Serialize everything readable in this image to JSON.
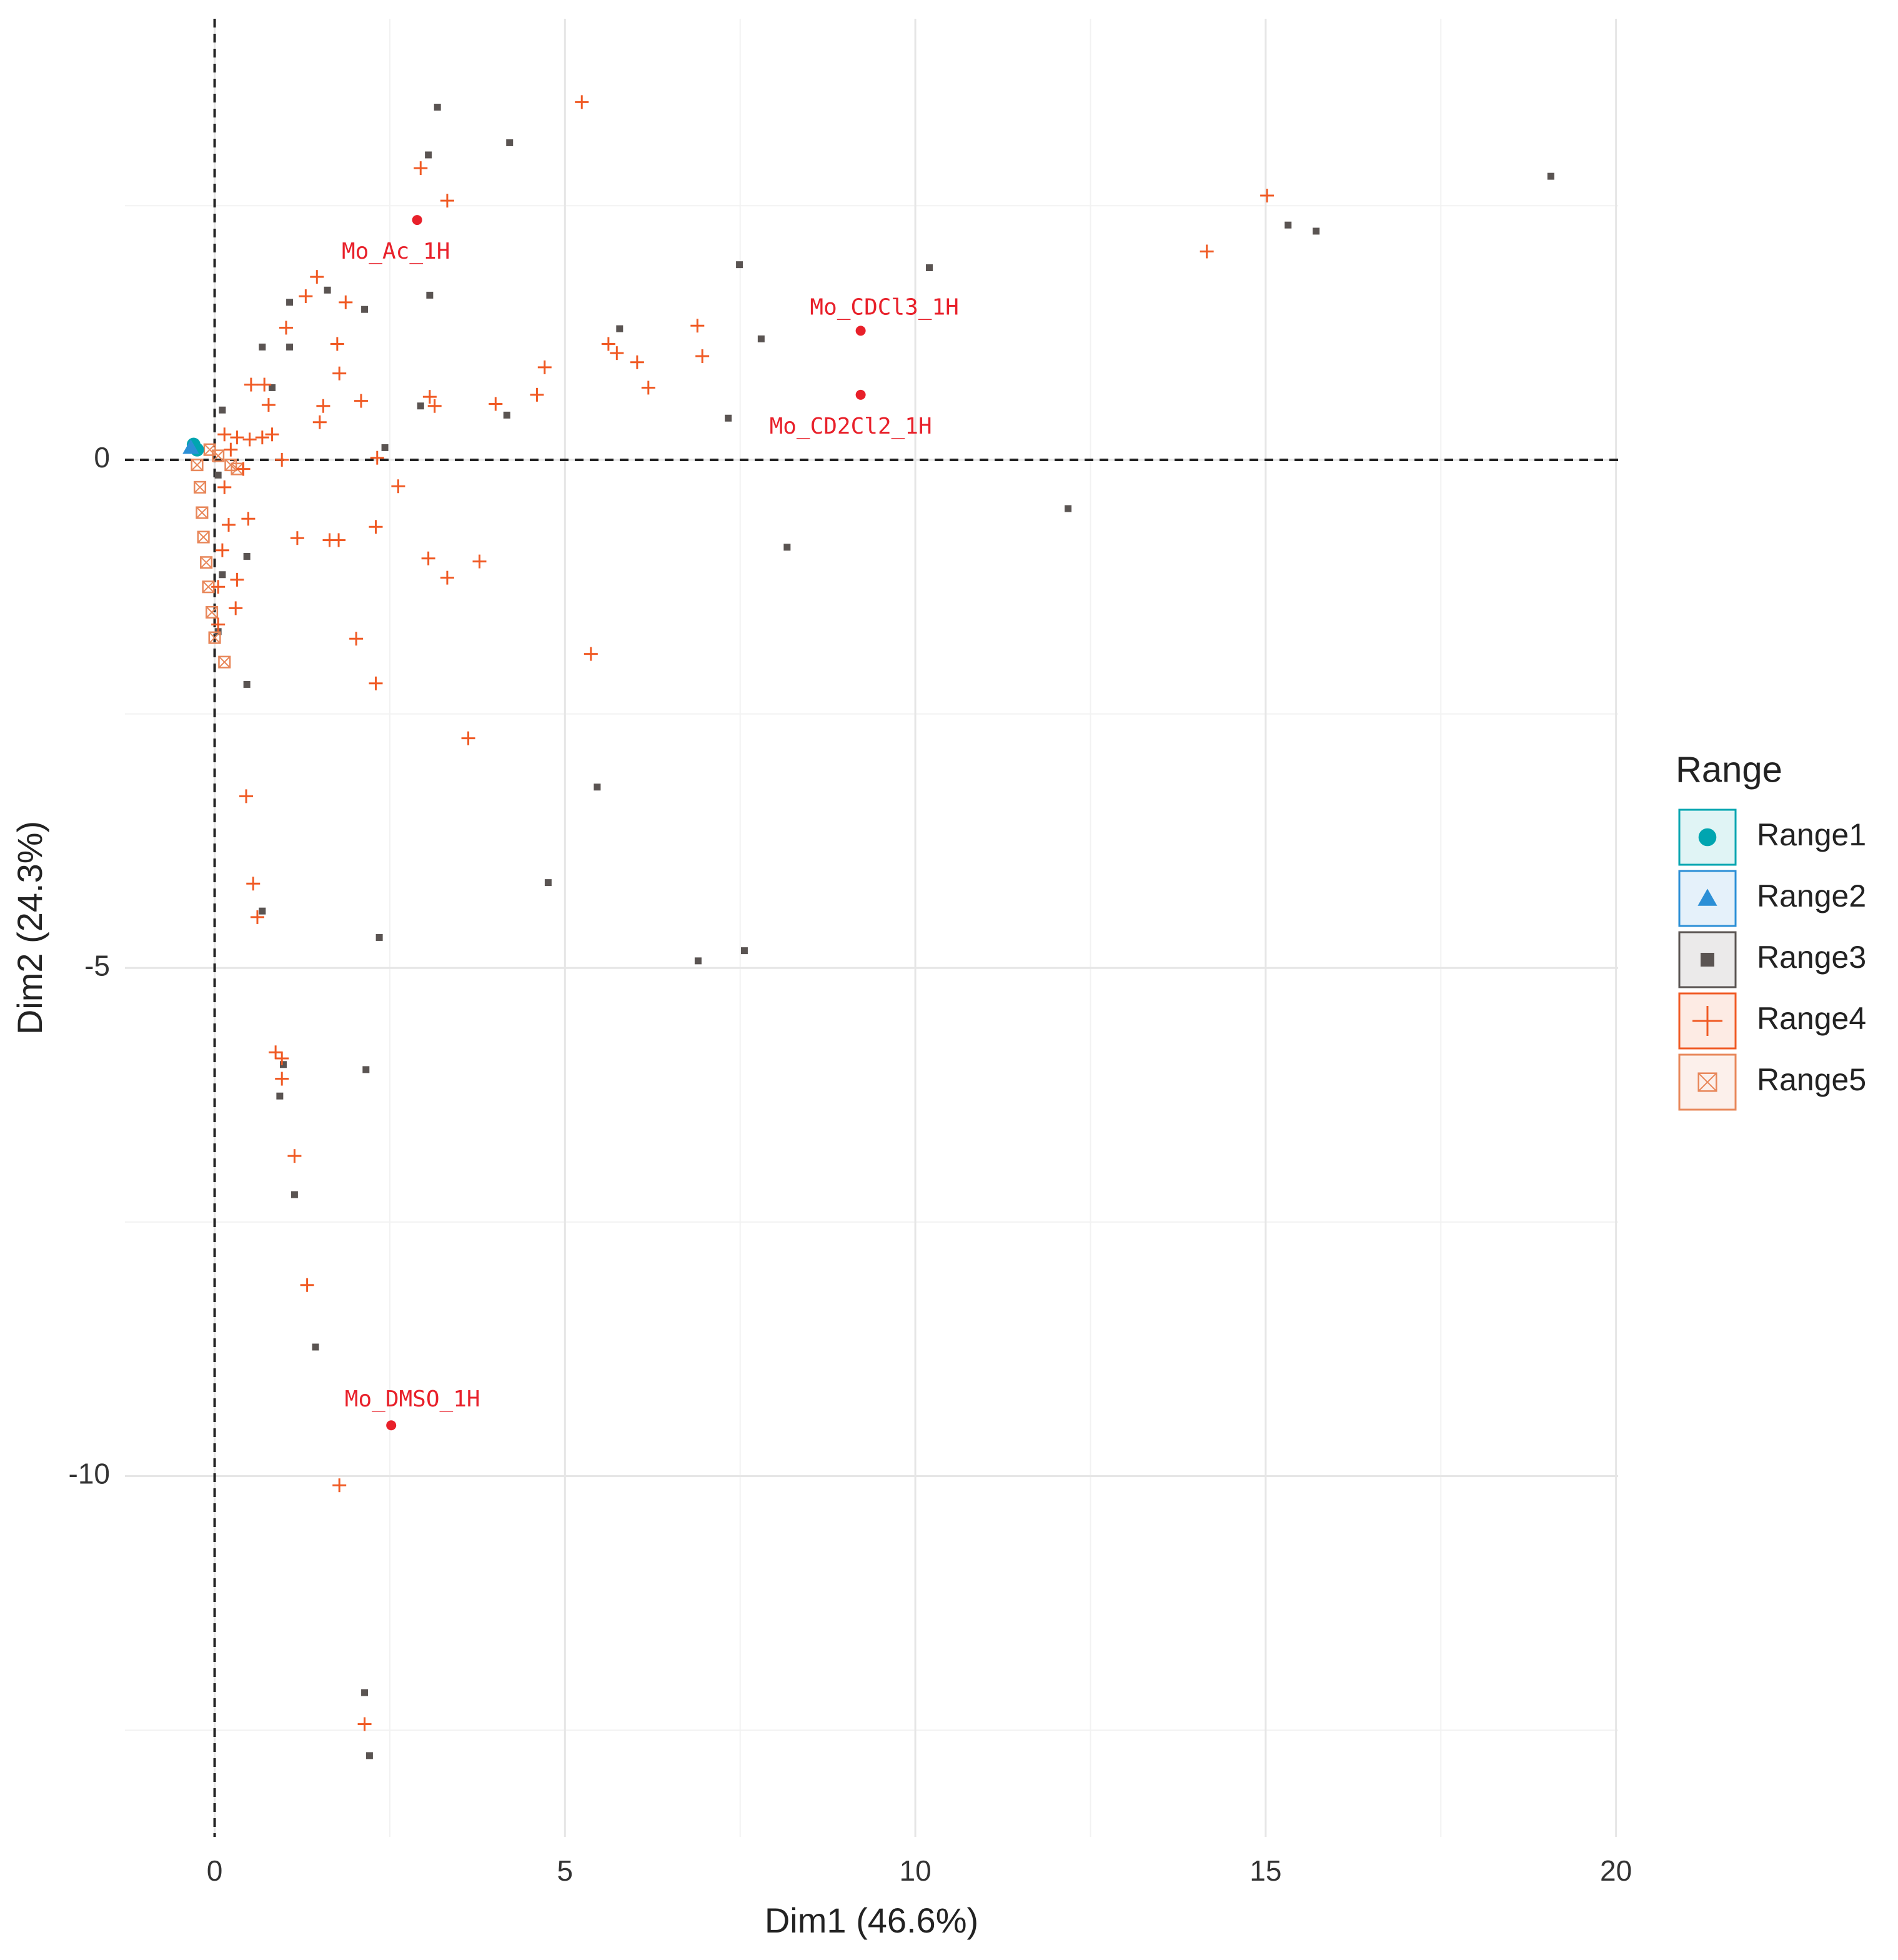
{
  "chart_data": {
    "type": "scatter",
    "x_label": "Dim1 (46.6%)",
    "y_label": "Dim2 (24.3%)",
    "xlim": [
      -1.28,
      20.03
    ],
    "ylim": [
      -13.55,
      4.34
    ],
    "xticks": [
      0,
      5,
      10,
      15,
      20
    ],
    "yticks": [
      -10,
      -5,
      0
    ],
    "xminor": [
      2.5,
      7.5,
      12.5,
      17.5
    ],
    "yminor": [
      -12.5,
      -7.5,
      -2.5,
      2.5
    ],
    "grid": true,
    "reference_lines": {
      "x": 0,
      "y": 0
    },
    "legend_title": "Range",
    "legend_position": "right",
    "series": [
      {
        "name": "Range1",
        "color": "#00a5b0",
        "shape": "circle",
        "x": [
          -0.3,
          -0.25
        ],
        "y": [
          0.15,
          0.1
        ]
      },
      {
        "name": "Range2",
        "color": "#2b8fd6",
        "shape": "triangle",
        "x": [
          -0.34
        ],
        "y": [
          0.12
        ]
      },
      {
        "name": "Range3",
        "color": "#5a5452",
        "shape": "square",
        "x": [
          3.18,
          4.21,
          3.05,
          19.07,
          15.32,
          15.72,
          7.49,
          10.2,
          3.07,
          1.61,
          1.07,
          2.14,
          5.78,
          7.8,
          0.68,
          1.07,
          0.82,
          2.94,
          4.17,
          7.33,
          0.11,
          2.43,
          0.05,
          12.18,
          8.17,
          0.46,
          0.11,
          0.05,
          0.46,
          5.46,
          4.76,
          0.68,
          2.35,
          6.9,
          7.56,
          2.16,
          0.98,
          0.93,
          1.14,
          1.44,
          2.14,
          2.21
        ],
        "y": [
          3.47,
          3.12,
          3.0,
          2.79,
          2.31,
          2.25,
          1.92,
          1.89,
          1.62,
          1.67,
          1.55,
          1.48,
          1.29,
          1.19,
          1.11,
          1.11,
          0.71,
          0.53,
          0.44,
          0.41,
          0.49,
          0.12,
          -0.15,
          -0.48,
          -0.86,
          -0.95,
          -1.13,
          -1.69,
          -2.21,
          -3.22,
          -4.16,
          -4.44,
          -4.7,
          -4.93,
          -4.83,
          -6.0,
          -5.95,
          -6.26,
          -7.23,
          -8.73,
          -12.13,
          -12.75
        ]
      },
      {
        "name": "Range4",
        "color": "#f05a24",
        "shape": "plus",
        "x": [
          5.24,
          2.94,
          3.32,
          15.02,
          14.16,
          1.46,
          1.3,
          1.87,
          1.02,
          6.89,
          1.75,
          5.62,
          5.74,
          6.03,
          6.96,
          4.71,
          1.78,
          0.52,
          0.71,
          0.77,
          2.09,
          3.07,
          3.14,
          4.01,
          4.6,
          6.19,
          1.55,
          1.5,
          2.32,
          0.96,
          2.62,
          0.48,
          1.18,
          1.64,
          1.77,
          2.3,
          3.05,
          3.32,
          3.78,
          0.32,
          0.3,
          5.37,
          2.02,
          2.3,
          3.62,
          0.45,
          0.55,
          0.61,
          0.87,
          0.96,
          0.96,
          1.14,
          1.32,
          1.78,
          2.14,
          0.14,
          0.32,
          0.5,
          0.68,
          0.82,
          0.23,
          0.41,
          0.14,
          0.2,
          0.11,
          0.05,
          0.05
        ],
        "y": [
          3.52,
          2.87,
          2.55,
          2.6,
          2.05,
          1.8,
          1.61,
          1.55,
          1.3,
          1.32,
          1.14,
          1.14,
          1.05,
          0.96,
          1.02,
          0.91,
          0.85,
          0.74,
          0.74,
          0.54,
          0.58,
          0.62,
          0.53,
          0.55,
          0.64,
          0.71,
          0.53,
          0.37,
          0.02,
          0,
          -0.26,
          -0.58,
          -0.77,
          -0.79,
          -0.79,
          -0.66,
          -0.97,
          -1.16,
          -1.0,
          -1.18,
          -1.46,
          -1.91,
          -1.76,
          -2.2,
          -2.74,
          -3.31,
          -4.17,
          -4.5,
          -5.83,
          -5.89,
          -6.09,
          -6.85,
          -8.12,
          -10.09,
          -12.44,
          0.25,
          0.22,
          0.2,
          0.22,
          0.25,
          0.1,
          -0.09,
          -0.27,
          -0.64,
          -0.89,
          -1.25,
          -1.62
        ]
      },
      {
        "name": "Range5",
        "color": "#e8875a",
        "shape": "boxx",
        "x": [
          -0.25,
          -0.21,
          -0.18,
          -0.16,
          -0.12,
          -0.09,
          -0.04,
          0,
          0.14,
          -0.07,
          0.05,
          0.23,
          0.32
        ],
        "y": [
          -0.05,
          -0.27,
          -0.52,
          -0.76,
          -1.01,
          -1.25,
          -1.5,
          -1.75,
          -1.99,
          0.1,
          0.04,
          -0.05,
          -0.09
        ]
      }
    ],
    "supplementary": {
      "color": "#e8202a",
      "labels": [
        "Mo_Ac_1H",
        "Mo_CDCl3_1H",
        "Mo_CD2Cl2_1H",
        "Mo_DMSO_1H"
      ],
      "x": [
        2.89,
        9.22,
        9.22,
        2.52
      ],
      "y": [
        2.36,
        1.27,
        0.64,
        -9.5
      ]
    }
  }
}
